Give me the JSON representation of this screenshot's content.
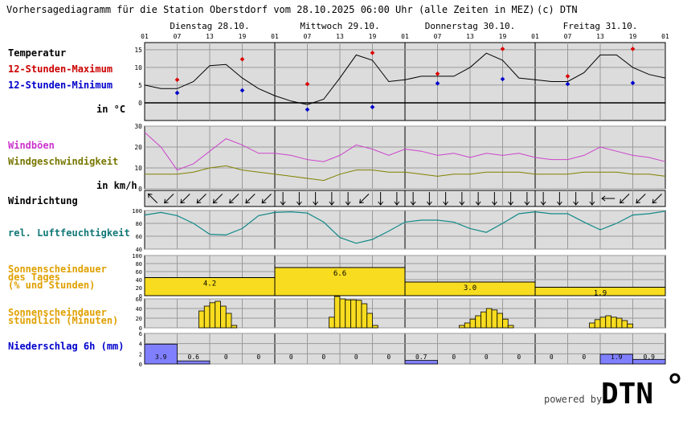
{
  "header": {
    "title": "Vorhersagediagramm für die Station Oberstdorf vom 28.10.2025 06:00 Uhr (alle Zeiten in MEZ)",
    "copyright": "(c) DTN"
  },
  "days": [
    "Dienstag 28.10.",
    "Mittwoch 29.10.",
    "Donnerstag 30.10.",
    "Freitag 31.10."
  ],
  "hour_ticks": [
    "01",
    "07",
    "13",
    "19",
    "01",
    "07",
    "13",
    "19",
    "01",
    "07",
    "13",
    "19",
    "01",
    "07",
    "13",
    "19",
    "01"
  ],
  "labels": {
    "temperature": "Temperatur",
    "max": "12-Stunden-Maximum",
    "min": "12-Stunden-Minimum",
    "temp_unit": "in °C",
    "gusts": "Windböen",
    "windspeed": "Windgeschwindigkeit",
    "wind_unit": "in km/h",
    "winddir": "Windrichtung",
    "humidity": "rel. Luftfeuchtigkeit",
    "sun_daily_1": "Sonnenscheindauer",
    "sun_daily_2": "des Tages",
    "sun_daily_3": "(% und Stunden)",
    "sun_hourly_1": "Sonnenscheindauer",
    "sun_hourly_2": "stündlich (Minuten)",
    "precip": "Niederschlag 6h (mm)"
  },
  "branding": {
    "powered_by": "powered by",
    "logo": "DTN"
  },
  "colors": {
    "panel_bg": "#dcdcdc",
    "temp_line": "#000000",
    "max_marker": "#dd0000",
    "min_marker": "#0000cc",
    "gust_line": "#cc44cc",
    "wind_line": "#808000",
    "humidity_line": "#118888",
    "sun_fill": "#f8dc20",
    "precip_fill": "#8080ff",
    "label_red": "#cc0000",
    "label_blue": "#0000cc",
    "label_magenta": "#cc33cc",
    "label_olive": "#777700",
    "label_teal": "#117777",
    "label_orange": "#e0a000",
    "label_navy": "#0000cc"
  },
  "chart_data": [
    {
      "id": "temperature",
      "type": "line",
      "x_unit": "hours since 28.10. 01:00",
      "ylim": [
        -5,
        17
      ],
      "yticks": [
        0,
        5,
        10,
        15
      ],
      "x": [
        0,
        3,
        6,
        9,
        12,
        15,
        18,
        21,
        24,
        27,
        30,
        33,
        36,
        39,
        42,
        45,
        48,
        51,
        54,
        57,
        60,
        63,
        66,
        69,
        72,
        75,
        78,
        81,
        84,
        87,
        90,
        93,
        96
      ],
      "values": [
        5,
        4,
        4,
        6,
        10.5,
        10.8,
        7,
        4,
        2,
        0.5,
        -0.5,
        1,
        7,
        13.5,
        12,
        6,
        6.5,
        7.5,
        7.5,
        7.5,
        10,
        14,
        12,
        7,
        6.5,
        6,
        6,
        8.5,
        13.5,
        13.5,
        10,
        8,
        7
      ],
      "max_points": [
        [
          6,
          6.5
        ],
        [
          18,
          12.3
        ],
        [
          30,
          5.3
        ],
        [
          42,
          14.1
        ],
        [
          54,
          8.2
        ],
        [
          66,
          15.2
        ],
        [
          78,
          7.5
        ],
        [
          90,
          15.2
        ]
      ],
      "min_points": [
        [
          6,
          2.8
        ],
        [
          18,
          3.5
        ],
        [
          30,
          -1.9
        ],
        [
          42,
          -1.2
        ],
        [
          54,
          5.5
        ],
        [
          66,
          6.7
        ],
        [
          78,
          5.3
        ],
        [
          90,
          5.6
        ]
      ]
    },
    {
      "id": "wind",
      "type": "line",
      "ylim": [
        0,
        30
      ],
      "yticks": [
        0,
        10,
        20,
        30
      ],
      "x": [
        0,
        3,
        6,
        9,
        12,
        15,
        18,
        21,
        24,
        27,
        30,
        33,
        36,
        39,
        42,
        45,
        48,
        51,
        54,
        57,
        60,
        63,
        66,
        69,
        72,
        75,
        78,
        81,
        84,
        87,
        90,
        93,
        96
      ],
      "series": [
        {
          "name": "Windböen",
          "values": [
            27,
            20,
            9,
            12,
            18,
            24,
            21,
            17,
            17,
            16,
            14,
            13,
            16,
            21,
            19,
            16,
            19,
            18,
            16,
            17,
            15,
            17,
            16,
            17,
            15,
            14,
            14,
            16,
            20,
            18,
            16,
            15,
            13
          ]
        },
        {
          "name": "Windgeschwindigkeit",
          "values": [
            7,
            7,
            7,
            8,
            10,
            11,
            9,
            8,
            7,
            6,
            5,
            4,
            7,
            9,
            9,
            8,
            8,
            7,
            6,
            7,
            7,
            8,
            8,
            8,
            7,
            7,
            7,
            8,
            8,
            8,
            7,
            7,
            6
          ]
        }
      ]
    },
    {
      "id": "winddir",
      "type": "arrows",
      "x": [
        0,
        3,
        6,
        9,
        12,
        15,
        18,
        21,
        24,
        27,
        30,
        33,
        36,
        39,
        42,
        45,
        48,
        51,
        54,
        57,
        60,
        63,
        66,
        69,
        72,
        75,
        78,
        81,
        84,
        87,
        90,
        93
      ],
      "direction_deg": [
        135,
        45,
        45,
        45,
        45,
        45,
        45,
        45,
        0,
        0,
        0,
        0,
        0,
        45,
        0,
        0,
        0,
        0,
        0,
        0,
        0,
        0,
        0,
        0,
        0,
        0,
        0,
        0,
        90,
        45,
        45,
        45
      ]
    },
    {
      "id": "humidity",
      "type": "line",
      "ylim": [
        40,
        100
      ],
      "yticks": [
        40,
        60,
        80,
        100
      ],
      "x": [
        0,
        3,
        6,
        9,
        12,
        15,
        18,
        21,
        24,
        27,
        30,
        33,
        36,
        39,
        42,
        45,
        48,
        51,
        54,
        57,
        60,
        63,
        66,
        69,
        72,
        75,
        78,
        81,
        84,
        87,
        90,
        93,
        96
      ],
      "values": [
        93,
        97,
        92,
        80,
        63,
        62,
        72,
        92,
        97,
        98,
        96,
        82,
        58,
        49,
        55,
        68,
        82,
        85,
        85,
        82,
        72,
        66,
        80,
        95,
        98,
        95,
        95,
        82,
        70,
        80,
        93,
        95,
        99
      ]
    },
    {
      "id": "sun_daily",
      "type": "bar",
      "ylim": [
        0,
        100
      ],
      "yticks": [
        0,
        20,
        40,
        60,
        80,
        100
      ],
      "categories": [
        "28.10.",
        "29.10.",
        "30.10.",
        "31.10."
      ],
      "values": [
        45,
        70,
        34,
        21
      ],
      "labels": [
        "4.2",
        "6.6",
        "3.0",
        "1.9"
      ]
    },
    {
      "id": "sun_hourly",
      "type": "bar",
      "ylim": [
        0,
        60
      ],
      "yticks": [
        0,
        20,
        40,
        60
      ],
      "bars": [
        [
          10,
          35
        ],
        [
          11,
          45
        ],
        [
          12,
          52
        ],
        [
          13,
          55
        ],
        [
          14,
          45
        ],
        [
          15,
          30
        ],
        [
          16,
          5
        ],
        [
          34,
          22
        ],
        [
          35,
          65
        ],
        [
          36,
          60
        ],
        [
          37,
          58
        ],
        [
          38,
          58
        ],
        [
          39,
          57
        ],
        [
          40,
          50
        ],
        [
          41,
          30
        ],
        [
          42,
          5
        ],
        [
          58,
          5
        ],
        [
          59,
          10
        ],
        [
          60,
          18
        ],
        [
          61,
          25
        ],
        [
          62,
          33
        ],
        [
          63,
          40
        ],
        [
          64,
          37
        ],
        [
          65,
          30
        ],
        [
          66,
          18
        ],
        [
          67,
          5
        ],
        [
          82,
          10
        ],
        [
          83,
          17
        ],
        [
          84,
          22
        ],
        [
          85,
          25
        ],
        [
          86,
          22
        ],
        [
          87,
          20
        ],
        [
          88,
          15
        ],
        [
          89,
          8
        ]
      ]
    },
    {
      "id": "precipitation",
      "type": "bar",
      "ylim": [
        0,
        6
      ],
      "yticks": [
        0,
        2,
        4,
        6
      ],
      "x": [
        0,
        6,
        12,
        18,
        24,
        30,
        36,
        42,
        48,
        54,
        60,
        66,
        72,
        78,
        84,
        90
      ],
      "values": [
        3.9,
        0.6,
        0,
        0,
        0,
        0,
        0,
        0,
        0.7,
        0,
        0,
        0,
        0,
        0,
        1.9,
        0.9
      ],
      "labels": [
        "3.9",
        "0.6",
        "0",
        "0",
        "0",
        "0",
        "0",
        "0",
        "0.7",
        "0",
        "0",
        "0",
        "0",
        "0",
        "1.9",
        "0.9"
      ]
    }
  ]
}
